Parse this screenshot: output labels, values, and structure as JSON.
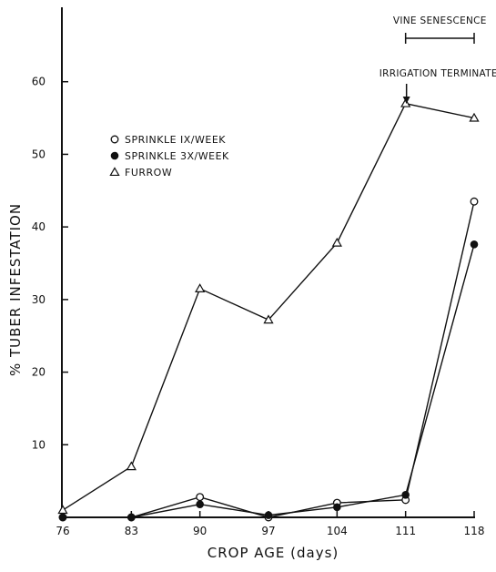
{
  "chart_data": {
    "type": "line",
    "title": "",
    "xlabel": "CROP AGE (days)",
    "ylabel": "% TUBER INFESTATION",
    "x": [
      76,
      83,
      90,
      97,
      104,
      111,
      118
    ],
    "x_tick_labels": [
      "76",
      "83",
      "90",
      "97",
      "104",
      "111",
      "118"
    ],
    "xlim": [
      76,
      118
    ],
    "ylim": [
      0,
      70
    ],
    "y_ticks": [
      10,
      20,
      30,
      40,
      50,
      60
    ],
    "y_tick_labels": [
      "10",
      "20",
      "30",
      "40",
      "50",
      "60"
    ],
    "grid": false,
    "legend_position": "upper-left",
    "series": [
      {
        "name": "SPRINKLE IX/WEEK",
        "marker": "open-circle",
        "values": [
          0,
          0,
          2.8,
          0,
          2,
          2.4,
          43.5
        ]
      },
      {
        "name": "SPRINKLE 3X/WEEK",
        "marker": "filled-circle",
        "values": [
          0,
          0,
          1.8,
          0.3,
          1.4,
          3.1,
          37.6
        ]
      },
      {
        "name": "FURROW",
        "marker": "open-triangle",
        "values": [
          1,
          7,
          31.5,
          27.2,
          37.8,
          57,
          55
        ]
      }
    ],
    "annotations": [
      {
        "text": "VINE SENESCENCE",
        "type": "bracket",
        "x_start": 111,
        "x_end": 118
      },
      {
        "text": "IRRIGATION TERMINATED",
        "type": "arrow",
        "x": 111
      }
    ]
  }
}
